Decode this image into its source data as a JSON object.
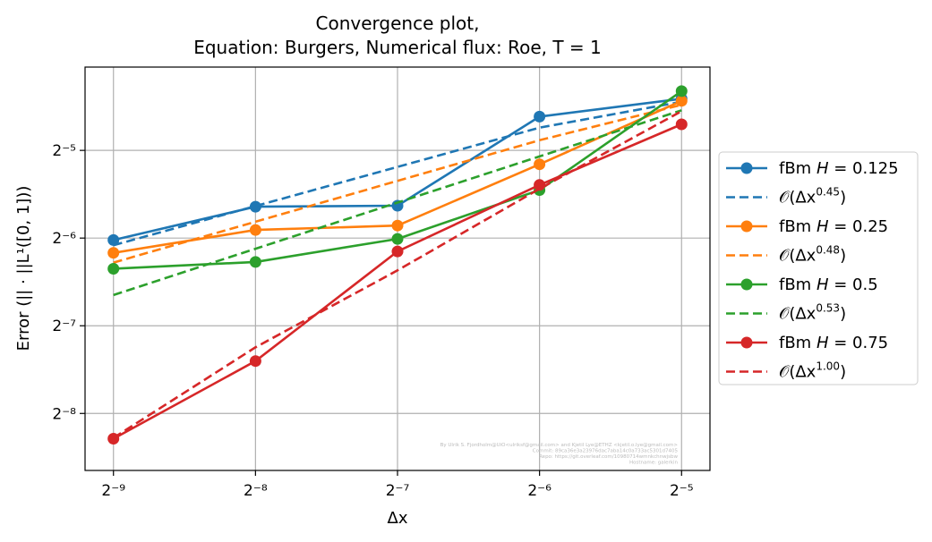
{
  "chart_data": {
    "type": "line",
    "title_line1": "Convergence plot,",
    "title_line2": "Equation: Burgers, Numerical flux: Roe, T = 1",
    "xlabel": "Δx",
    "ylabel": "Error (|| · ||L¹([0, 1]))",
    "x_scale": "log2",
    "y_scale": "log2",
    "x": [
      0.001953125,
      0.00390625,
      0.0078125,
      0.015625,
      0.03125
    ],
    "x_tick_labels": [
      "2⁻⁹",
      "2⁻⁸",
      "2⁻⁷",
      "2⁻⁶",
      "2⁻⁵"
    ],
    "y_tick_labels": [
      "2⁻⁸",
      "2⁻⁷",
      "2⁻⁶",
      "2⁻⁵"
    ],
    "y_tick_exponents": [
      -8,
      -7,
      -6,
      -5
    ],
    "x_tick_exponents": [
      -9,
      -8,
      -7,
      -6,
      -5
    ],
    "xlim_log2": [
      -9.2,
      -4.8
    ],
    "ylim_log2": [
      -8.65,
      -4.05
    ],
    "grid": true,
    "legend_position": "outside-right",
    "series": [
      {
        "name": "fBm H = 0.125",
        "kind": "measured",
        "color": "#1f77b4",
        "values": [
          0.01538,
          0.02002,
          0.02018,
          0.0408,
          0.047
        ]
      },
      {
        "name": "O(Δx^0.45)",
        "kind": "fit",
        "color": "#1f77b4",
        "values": [
          0.01476,
          0.02012,
          0.02743,
          0.0374,
          0.0459
        ]
      },
      {
        "name": "fBm H = 0.25",
        "kind": "measured",
        "color": "#ff7f0e",
        "values": [
          0.0139,
          0.01666,
          0.01725,
          0.02799,
          0.0462
        ]
      },
      {
        "name": "O(Δx^0.48)",
        "kind": "fit",
        "color": "#ff7f0e",
        "values": [
          0.01287,
          0.01778,
          0.02457,
          0.03387,
          0.0448
        ]
      },
      {
        "name": "fBm H = 0.5",
        "kind": "measured",
        "color": "#2ca02c",
        "values": [
          0.01226,
          0.01294,
          0.01552,
          0.02283,
          0.0499
        ]
      },
      {
        "name": "O(Δx^0.53)",
        "kind": "fit",
        "color": "#2ca02c",
        "values": [
          0.00996,
          0.01436,
          0.02068,
          0.0298,
          0.0429
        ]
      },
      {
        "name": "fBm H = 0.75",
        "kind": "measured",
        "color": "#d62728",
        "values": [
          0.0032,
          0.00591,
          0.01406,
          0.02378,
          0.0384
        ]
      },
      {
        "name": "O(Δx^1.00)",
        "kind": "fit",
        "color": "#d62728",
        "values": [
          0.00322,
          0.00659,
          0.0121,
          0.02306,
          0.0426
        ]
      }
    ],
    "legend_labels": [
      {
        "prefix": "fBm ",
        "var": "H",
        "rest": " = 0.125"
      },
      {
        "prefix": "𝒪(Δx",
        "sup": "0.45",
        "rest": ")"
      },
      {
        "prefix": "fBm ",
        "var": "H",
        "rest": " = 0.25"
      },
      {
        "prefix": "𝒪(Δx",
        "sup": "0.48",
        "rest": ")"
      },
      {
        "prefix": "fBm ",
        "var": "H",
        "rest": " = 0.5"
      },
      {
        "prefix": "𝒪(Δx",
        "sup": "0.53",
        "rest": ")"
      },
      {
        "prefix": "fBm ",
        "var": "H",
        "rest": " = 0.75"
      },
      {
        "prefix": "𝒪(Δx",
        "sup": "1.00",
        "rest": ")"
      }
    ],
    "watermark_lines": [
      "By Ulrik S. Fjordholm@UiO<ulriksf@gmail.com> and Kjetil Lye@ETHZ <kjetil.o.lye@gmail.com>",
      "Commit: 89ca36e3a23976dac7aba14c0a733ac5301d7405",
      "Repo: https://git.overleaf.com/10980714wmnkchnwjsbw",
      "Hostname: galerkin"
    ]
  }
}
